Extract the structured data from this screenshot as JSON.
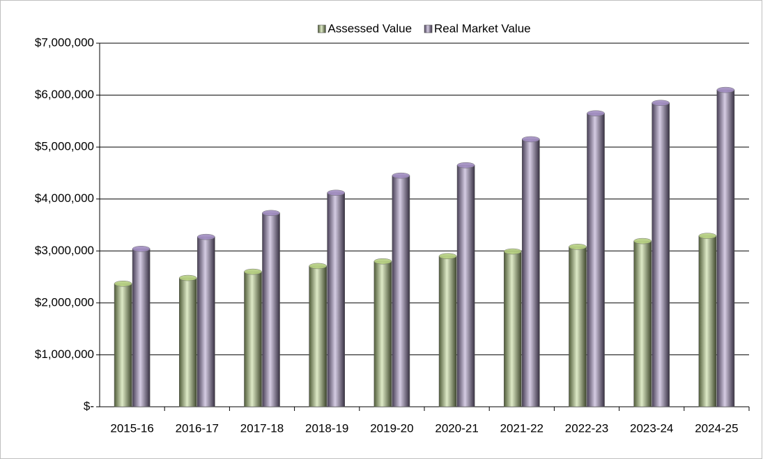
{
  "chart_data": {
    "type": "bar",
    "categories": [
      "2015-16",
      "2016-17",
      "2017-18",
      "2018-19",
      "2019-20",
      "2020-21",
      "2021-22",
      "2022-23",
      "2023-24",
      "2024-25"
    ],
    "series": [
      {
        "name": "Assessed Value",
        "color": "#b5cf80",
        "values": [
          2370000,
          2480000,
          2600000,
          2710000,
          2800000,
          2900000,
          2990000,
          3080000,
          3190000,
          3290000
        ]
      },
      {
        "name": "Real Market Value",
        "color": "#a08cc0",
        "values": [
          3040000,
          3270000,
          3730000,
          4120000,
          4450000,
          4650000,
          5150000,
          5650000,
          5850000,
          6100000
        ]
      }
    ],
    "ylim": [
      0,
      7000000
    ],
    "yticks": [
      {
        "value": 0,
        "label": "$-"
      },
      {
        "value": 1000000,
        "label": "$1,000,000"
      },
      {
        "value": 2000000,
        "label": "$2,000,000"
      },
      {
        "value": 3000000,
        "label": "$3,000,000"
      },
      {
        "value": 4000000,
        "label": "$4,000,000"
      },
      {
        "value": 5000000,
        "label": "$5,000,000"
      },
      {
        "value": 6000000,
        "label": "$6,000,000"
      },
      {
        "value": 7000000,
        "label": "$7,000,000"
      }
    ],
    "grid": true,
    "legend": "top"
  }
}
